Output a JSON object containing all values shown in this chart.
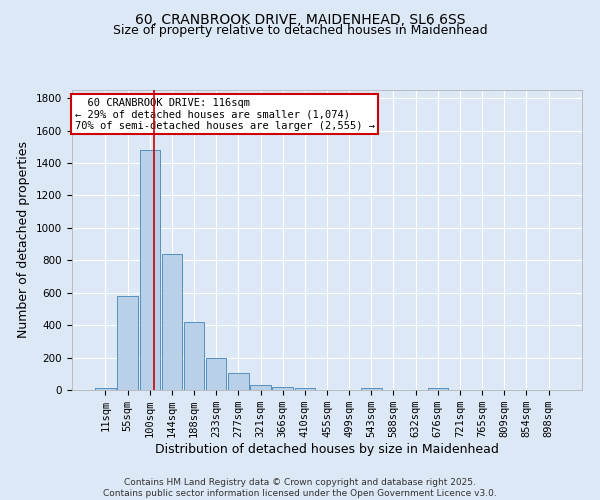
{
  "title_line1": "60, CRANBROOK DRIVE, MAIDENHEAD, SL6 6SS",
  "title_line2": "Size of property relative to detached houses in Maidenhead",
  "xlabel": "Distribution of detached houses by size in Maidenhead",
  "ylabel": "Number of detached properties",
  "categories": [
    "11sqm",
    "55sqm",
    "100sqm",
    "144sqm",
    "188sqm",
    "233sqm",
    "277sqm",
    "321sqm",
    "366sqm",
    "410sqm",
    "455sqm",
    "499sqm",
    "543sqm",
    "588sqm",
    "632sqm",
    "676sqm",
    "721sqm",
    "765sqm",
    "809sqm",
    "854sqm",
    "898sqm"
  ],
  "values": [
    15,
    580,
    1480,
    840,
    420,
    200,
    105,
    30,
    20,
    15,
    0,
    0,
    15,
    0,
    0,
    15,
    0,
    0,
    0,
    0,
    0
  ],
  "bar_color": "#b8d0e8",
  "bar_edge_color": "#5590bf",
  "red_line_x": 2.18,
  "annotation_text": "  60 CRANBROOK DRIVE: 116sqm\n← 29% of detached houses are smaller (1,074)\n70% of semi-detached houses are larger (2,555) →",
  "annotation_box_color": "#ffffff",
  "annotation_box_edge": "#cc0000",
  "ylim": [
    0,
    1850
  ],
  "yticks": [
    0,
    200,
    400,
    600,
    800,
    1000,
    1200,
    1400,
    1600,
    1800
  ],
  "bg_color": "#dce8f5",
  "plot_bg_color": "#dce8f5",
  "grid_color": "#ffffff",
  "footer": "Contains HM Land Registry data © Crown copyright and database right 2025.\nContains public sector information licensed under the Open Government Licence v3.0.",
  "title_fontsize": 10,
  "subtitle_fontsize": 9,
  "axis_label_fontsize": 9,
  "tick_fontsize": 7.5,
  "annot_fontsize": 7.5
}
